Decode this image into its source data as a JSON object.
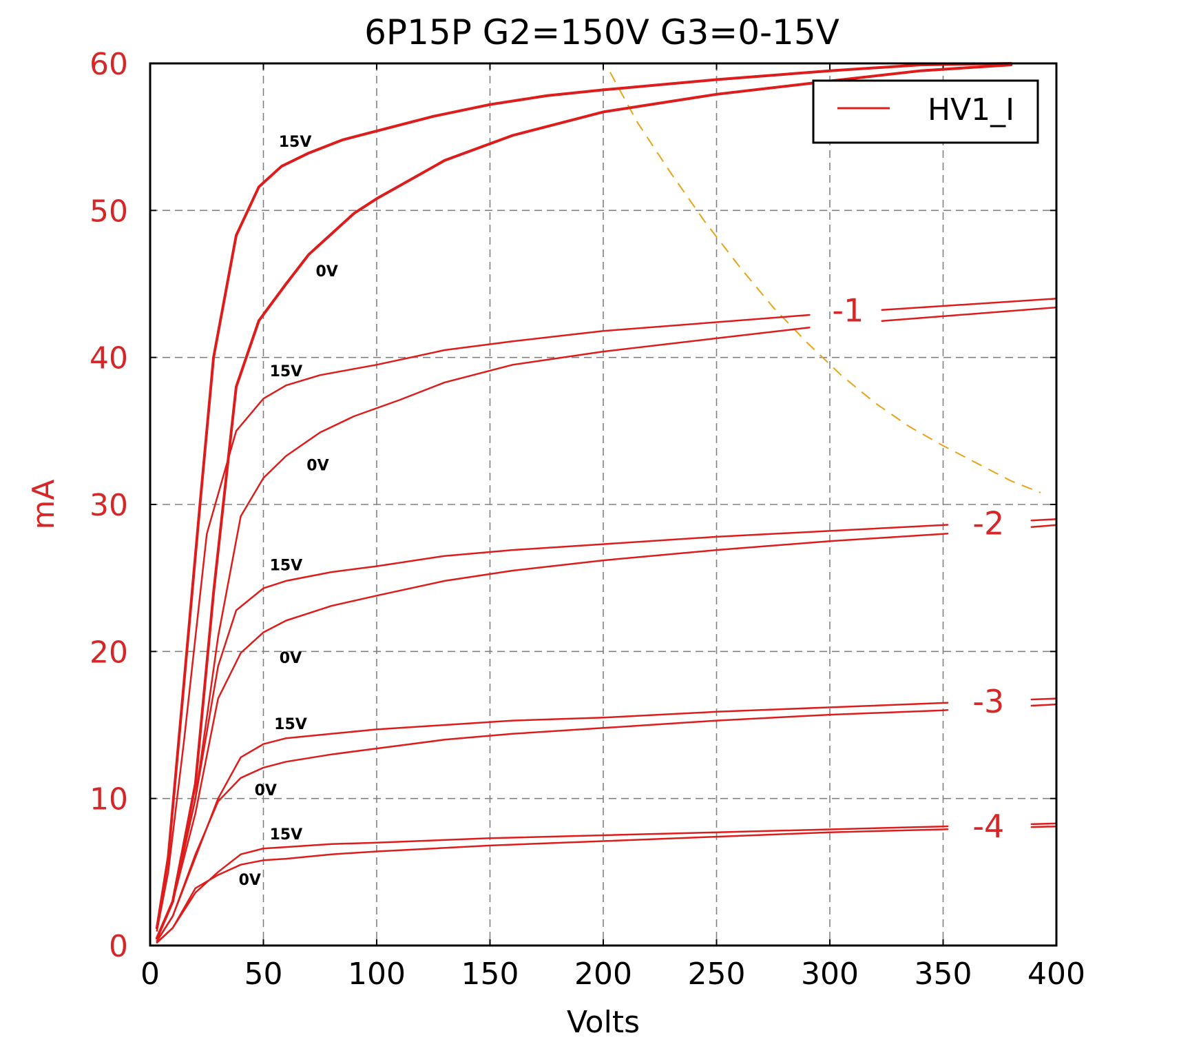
{
  "chart_data": {
    "type": "line",
    "title": "6P15P G2=150V G3=0-15V",
    "xlabel": "Volts",
    "ylabel": "mA",
    "xlim": [
      0,
      400
    ],
    "ylim": [
      0,
      60
    ],
    "xticks": [
      0,
      50,
      100,
      150,
      200,
      250,
      300,
      350,
      400
    ],
    "yticks": [
      0,
      10,
      20,
      30,
      40,
      50,
      60
    ],
    "xtick_labels": [
      "0",
      "50",
      "100",
      "150",
      "200",
      "250",
      "300",
      "350",
      "400"
    ],
    "ytick_labels": [
      "0",
      "10",
      "20",
      "30",
      "40",
      "50",
      "60"
    ],
    "grid": true,
    "grid_style": "dashed",
    "legend": {
      "label": "HV1_I",
      "position": "top-right"
    },
    "colors": {
      "curves": "#dd1c1c",
      "axis_labels": "#d62728",
      "load_line": "#e8a317",
      "grid": "#808080"
    },
    "series": [
      {
        "g1": "0",
        "g3": "15V",
        "width": 4,
        "points": [
          [
            3,
            1.2
          ],
          [
            8,
            6
          ],
          [
            15,
            18
          ],
          [
            22,
            30
          ],
          [
            28,
            40
          ],
          [
            38,
            48.3
          ],
          [
            48,
            51.6
          ],
          [
            58,
            53
          ],
          [
            70,
            53.9
          ],
          [
            85,
            54.8
          ],
          [
            100,
            55.4
          ],
          [
            125,
            56.4
          ],
          [
            150,
            57.2
          ],
          [
            175,
            57.8
          ],
          [
            200,
            58.2
          ],
          [
            250,
            58.9
          ],
          [
            300,
            59.5
          ],
          [
            340,
            59.9
          ],
          [
            380,
            60
          ]
        ]
      },
      {
        "g1": "0",
        "g3": "0V",
        "width": 4,
        "points": [
          [
            3,
            0.5
          ],
          [
            10,
            3
          ],
          [
            20,
            11
          ],
          [
            28,
            24
          ],
          [
            38,
            38
          ],
          [
            48,
            42.5
          ],
          [
            60,
            45
          ],
          [
            70,
            47
          ],
          [
            80,
            48.4
          ],
          [
            90,
            49.8
          ],
          [
            100,
            50.8
          ],
          [
            130,
            53.4
          ],
          [
            160,
            55.1
          ],
          [
            200,
            56.7
          ],
          [
            250,
            57.9
          ],
          [
            300,
            58.8
          ],
          [
            340,
            59.5
          ],
          [
            380,
            59.9
          ]
        ]
      },
      {
        "g1": "-1",
        "g3": "15V",
        "width": 2.5,
        "label_gap": [
          291,
          323
        ],
        "points": [
          [
            3,
            1
          ],
          [
            8,
            5
          ],
          [
            15,
            14
          ],
          [
            25,
            28
          ],
          [
            38,
            35
          ],
          [
            50,
            37.2
          ],
          [
            60,
            38.1
          ],
          [
            75,
            38.8
          ],
          [
            100,
            39.5
          ],
          [
            130,
            40.5
          ],
          [
            160,
            41.1
          ],
          [
            200,
            41.8
          ],
          [
            250,
            42.4
          ],
          [
            300,
            43
          ],
          [
            350,
            43.5
          ],
          [
            400,
            44
          ]
        ]
      },
      {
        "g1": "-1",
        "g3": "0V",
        "width": 2.5,
        "label_gap": [
          291,
          323
        ],
        "points": [
          [
            3,
            0.5
          ],
          [
            10,
            3
          ],
          [
            20,
            10
          ],
          [
            30,
            21
          ],
          [
            40,
            29.2
          ],
          [
            50,
            31.8
          ],
          [
            60,
            33.3
          ],
          [
            75,
            34.9
          ],
          [
            90,
            36
          ],
          [
            110,
            37.1
          ],
          [
            130,
            38.3
          ],
          [
            160,
            39.5
          ],
          [
            200,
            40.4
          ],
          [
            250,
            41.3
          ],
          [
            300,
            42.2
          ],
          [
            350,
            42.8
          ],
          [
            400,
            43.4
          ]
        ]
      },
      {
        "g1": "-2",
        "g3": "15V",
        "width": 2.5,
        "label_gap": [
          352,
          389
        ],
        "points": [
          [
            3,
            0.5
          ],
          [
            10,
            3
          ],
          [
            20,
            10
          ],
          [
            30,
            19
          ],
          [
            38,
            22.8
          ],
          [
            50,
            24.3
          ],
          [
            60,
            24.8
          ],
          [
            80,
            25.4
          ],
          [
            100,
            25.8
          ],
          [
            130,
            26.5
          ],
          [
            160,
            26.9
          ],
          [
            200,
            27.3
          ],
          [
            250,
            27.8
          ],
          [
            300,
            28.2
          ],
          [
            350,
            28.6
          ],
          [
            400,
            29
          ]
        ]
      },
      {
        "g1": "-2",
        "g3": "0V",
        "width": 2.5,
        "label_gap": [
          352,
          389
        ],
        "points": [
          [
            3,
            0.5
          ],
          [
            10,
            3
          ],
          [
            20,
            9
          ],
          [
            30,
            16.8
          ],
          [
            40,
            19.9
          ],
          [
            50,
            21.3
          ],
          [
            60,
            22.1
          ],
          [
            80,
            23.1
          ],
          [
            100,
            23.8
          ],
          [
            130,
            24.8
          ],
          [
            160,
            25.5
          ],
          [
            200,
            26.2
          ],
          [
            250,
            26.9
          ],
          [
            300,
            27.5
          ],
          [
            350,
            28
          ],
          [
            400,
            28.6
          ]
        ]
      },
      {
        "g1": "-3",
        "g3": "15V",
        "width": 2.5,
        "label_gap": [
          352,
          389
        ],
        "points": [
          [
            3,
            0.3
          ],
          [
            10,
            2
          ],
          [
            20,
            6
          ],
          [
            30,
            10
          ],
          [
            40,
            12.8
          ],
          [
            50,
            13.7
          ],
          [
            60,
            14.1
          ],
          [
            80,
            14.4
          ],
          [
            100,
            14.7
          ],
          [
            130,
            15
          ],
          [
            160,
            15.3
          ],
          [
            200,
            15.5
          ],
          [
            250,
            15.9
          ],
          [
            300,
            16.2
          ],
          [
            350,
            16.5
          ],
          [
            400,
            16.8
          ]
        ]
      },
      {
        "g1": "-3",
        "g3": "0V",
        "width": 2.5,
        "label_gap": [
          352,
          389
        ],
        "points": [
          [
            3,
            0.3
          ],
          [
            10,
            2
          ],
          [
            20,
            6.2
          ],
          [
            30,
            9.8
          ],
          [
            40,
            11.4
          ],
          [
            50,
            12.1
          ],
          [
            60,
            12.5
          ],
          [
            80,
            13
          ],
          [
            100,
            13.4
          ],
          [
            130,
            14
          ],
          [
            160,
            14.4
          ],
          [
            200,
            14.8
          ],
          [
            250,
            15.3
          ],
          [
            300,
            15.7
          ],
          [
            350,
            16
          ],
          [
            400,
            16.4
          ]
        ]
      },
      {
        "g1": "-4",
        "g3": "15V",
        "width": 2.5,
        "label_gap": [
          352,
          389
        ],
        "points": [
          [
            3,
            0.2
          ],
          [
            10,
            1.2
          ],
          [
            20,
            3.6
          ],
          [
            30,
            5
          ],
          [
            40,
            6.2
          ],
          [
            50,
            6.6
          ],
          [
            60,
            6.7
          ],
          [
            80,
            6.9
          ],
          [
            100,
            7
          ],
          [
            150,
            7.3
          ],
          [
            200,
            7.5
          ],
          [
            250,
            7.7
          ],
          [
            300,
            7.9
          ],
          [
            350,
            8.1
          ],
          [
            400,
            8.3
          ]
        ]
      },
      {
        "g1": "-4",
        "g3": "0V",
        "width": 2.5,
        "label_gap": [
          352,
          389
        ],
        "points": [
          [
            3,
            0.2
          ],
          [
            10,
            1.2
          ],
          [
            20,
            3.9
          ],
          [
            30,
            4.8
          ],
          [
            40,
            5.5
          ],
          [
            50,
            5.8
          ],
          [
            60,
            5.9
          ],
          [
            80,
            6.2
          ],
          [
            100,
            6.4
          ],
          [
            150,
            6.8
          ],
          [
            200,
            7.1
          ],
          [
            250,
            7.4
          ],
          [
            300,
            7.7
          ],
          [
            350,
            7.9
          ],
          [
            400,
            8.1
          ]
        ]
      }
    ],
    "load_line": {
      "style": "dashed",
      "points": [
        [
          203,
          59.4
        ],
        [
          215,
          56
        ],
        [
          230,
          52.5
        ],
        [
          245,
          49.2
        ],
        [
          260,
          46.2
        ],
        [
          275,
          43.4
        ],
        [
          290,
          41
        ],
        [
          305,
          38.8
        ],
        [
          320,
          36.9
        ],
        [
          335,
          35.3
        ],
        [
          350,
          34
        ],
        [
          365,
          32.8
        ],
        [
          380,
          31.6
        ],
        [
          393,
          30.8
        ]
      ]
    },
    "annotations": [
      {
        "text": "15V",
        "x": 64,
        "y": 54.7
      },
      {
        "text": "0V",
        "x": 78,
        "y": 45.9
      },
      {
        "text": "15V",
        "x": 60,
        "y": 39.1
      },
      {
        "text": "0V",
        "x": 74,
        "y": 32.7
      },
      {
        "text": "15V",
        "x": 60,
        "y": 25.9
      },
      {
        "text": "0V",
        "x": 62,
        "y": 19.6
      },
      {
        "text": "15V",
        "x": 62,
        "y": 15.1
      },
      {
        "text": "0V",
        "x": 51,
        "y": 10.6
      },
      {
        "text": "15V",
        "x": 60,
        "y": 7.6
      },
      {
        "text": "0V",
        "x": 44,
        "y": 4.5
      }
    ],
    "bias_labels": [
      {
        "text": "-1",
        "x": 308,
        "y": 43.2
      },
      {
        "text": "-2",
        "x": 370,
        "y": 28.7
      },
      {
        "text": "-3",
        "x": 370,
        "y": 16.6
      },
      {
        "text": "-4",
        "x": 370,
        "y": 8.1
      }
    ]
  }
}
